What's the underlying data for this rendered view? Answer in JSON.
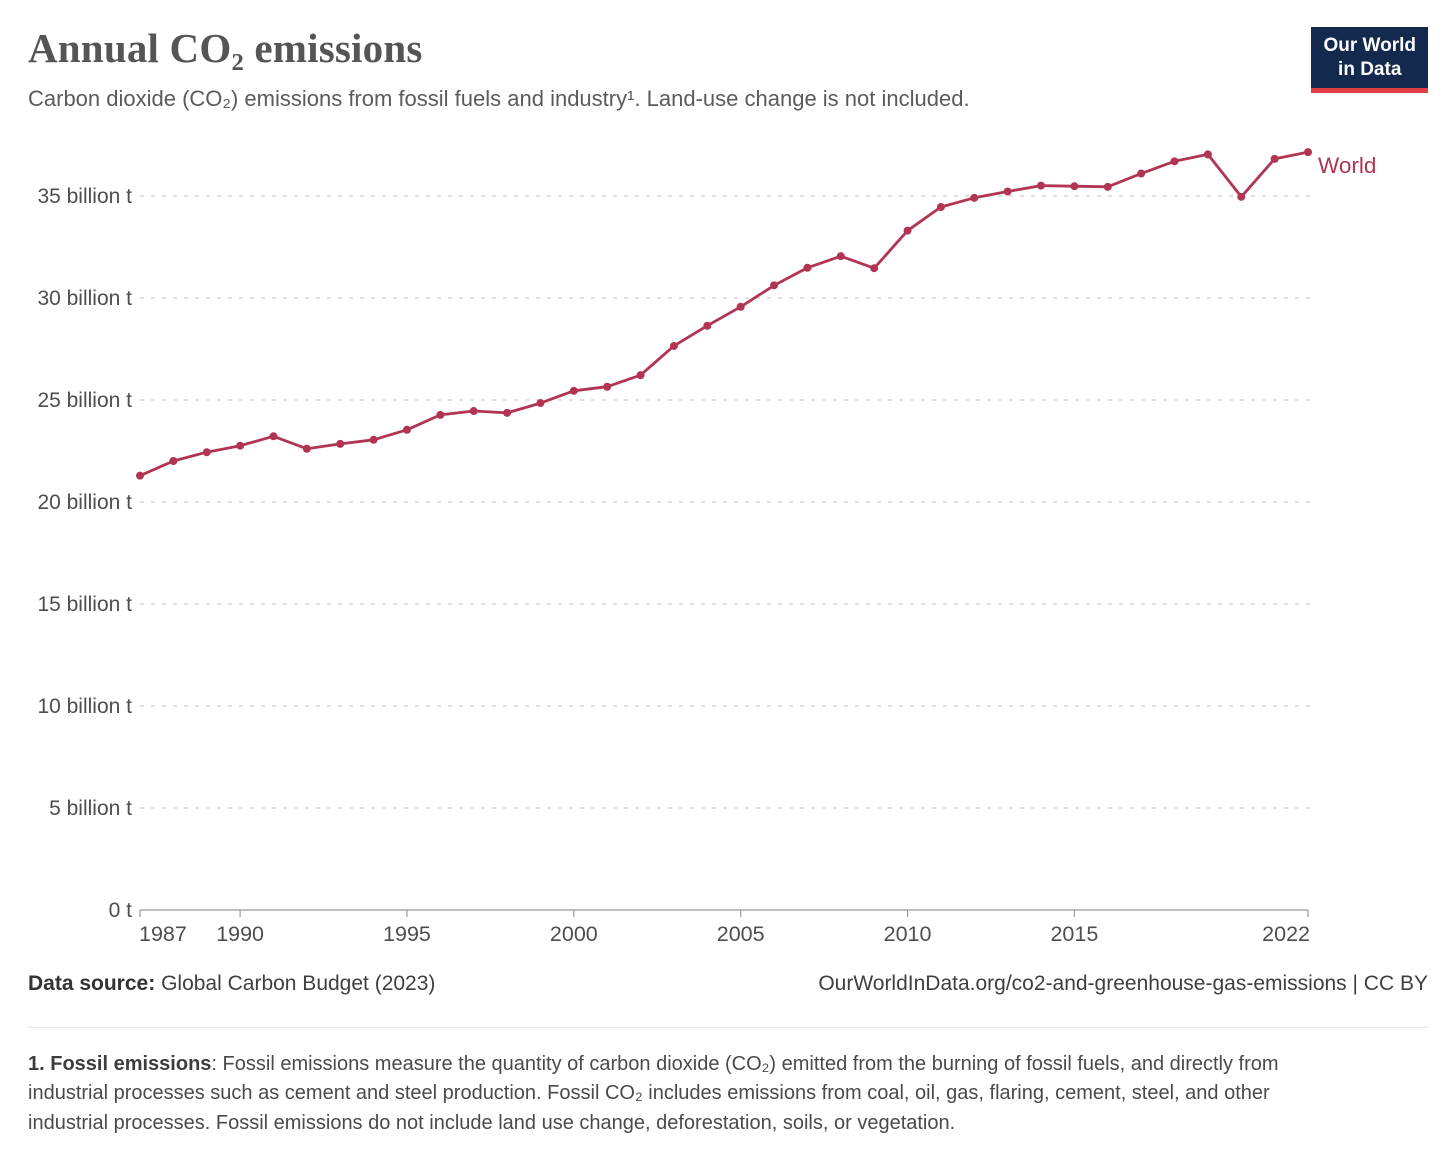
{
  "header": {
    "title": "Annual CO₂ emissions",
    "subtitle": "Carbon dioxide (CO₂) emissions from fossil fuels and industry¹. Land-use change is not included.",
    "logo": {
      "line1": "Our World",
      "line2": "in Data"
    }
  },
  "colors": {
    "series_world": "#b13553",
    "logo_background": "#132a4e",
    "logo_accent": "#e23c44",
    "grid": "#d6d6d6",
    "axis": "#9a9a9a",
    "tick_text": "#4e4e4e",
    "title_text": "#555555"
  },
  "chart_data": {
    "type": "line",
    "title": "Annual CO₂ emissions",
    "y_unit": "billion t",
    "xlim": [
      1987,
      2022
    ],
    "ylim": [
      0,
      37.5
    ],
    "grid": "horizontal-dashed",
    "legend": "label-at-line-end",
    "x": [
      1987,
      1988,
      1989,
      1990,
      1991,
      1992,
      1993,
      1994,
      1995,
      1996,
      1997,
      1998,
      1999,
      2000,
      2001,
      2002,
      2003,
      2004,
      2005,
      2006,
      2007,
      2008,
      2009,
      2010,
      2011,
      2012,
      2013,
      2014,
      2015,
      2016,
      2017,
      2018,
      2019,
      2020,
      2021,
      2022
    ],
    "series": [
      {
        "name": "World",
        "color": "#b13553",
        "values": [
          21.29,
          22.01,
          22.44,
          22.76,
          23.22,
          22.61,
          22.85,
          23.05,
          23.54,
          24.27,
          24.46,
          24.37,
          24.85,
          25.45,
          25.65,
          26.22,
          27.65,
          28.64,
          29.57,
          30.62,
          31.48,
          32.05,
          31.46,
          33.3,
          34.46,
          34.91,
          35.22,
          35.51,
          35.48,
          35.45,
          36.1,
          36.7,
          37.04,
          34.96,
          36.82,
          37.15
        ]
      }
    ],
    "x_ticks": [
      1987,
      1990,
      1995,
      2000,
      2005,
      2010,
      2015,
      2022
    ],
    "x_tick_labels": [
      "1987",
      "1990",
      "1995",
      "2000",
      "2005",
      "2010",
      "2015",
      "2022"
    ],
    "y_ticks": [
      0,
      5,
      10,
      15,
      20,
      25,
      30,
      35
    ],
    "y_tick_labels": [
      "0 t",
      "5 billion t",
      "10 billion t",
      "15 billion t",
      "20 billion t",
      "25 billion t",
      "30 billion t",
      "35 billion t"
    ]
  },
  "footer": {
    "source_label": "Data source:",
    "source_value": "Global Carbon Budget (2023)",
    "attribution": "OurWorldInData.org/co2-and-greenhouse-gas-emissions | CC BY"
  },
  "footnote": {
    "lead": "1. Fossil emissions",
    "text": ": Fossil emissions measure the quantity of carbon dioxide (CO₂) emitted from the burning of fossil fuels, and directly from industrial processes such as cement and steel production. Fossil CO₂ includes emissions from coal, oil, gas, flaring, cement, steel, and other industrial processes. Fossil emissions do not include land use change, deforestation, soils, or vegetation."
  }
}
